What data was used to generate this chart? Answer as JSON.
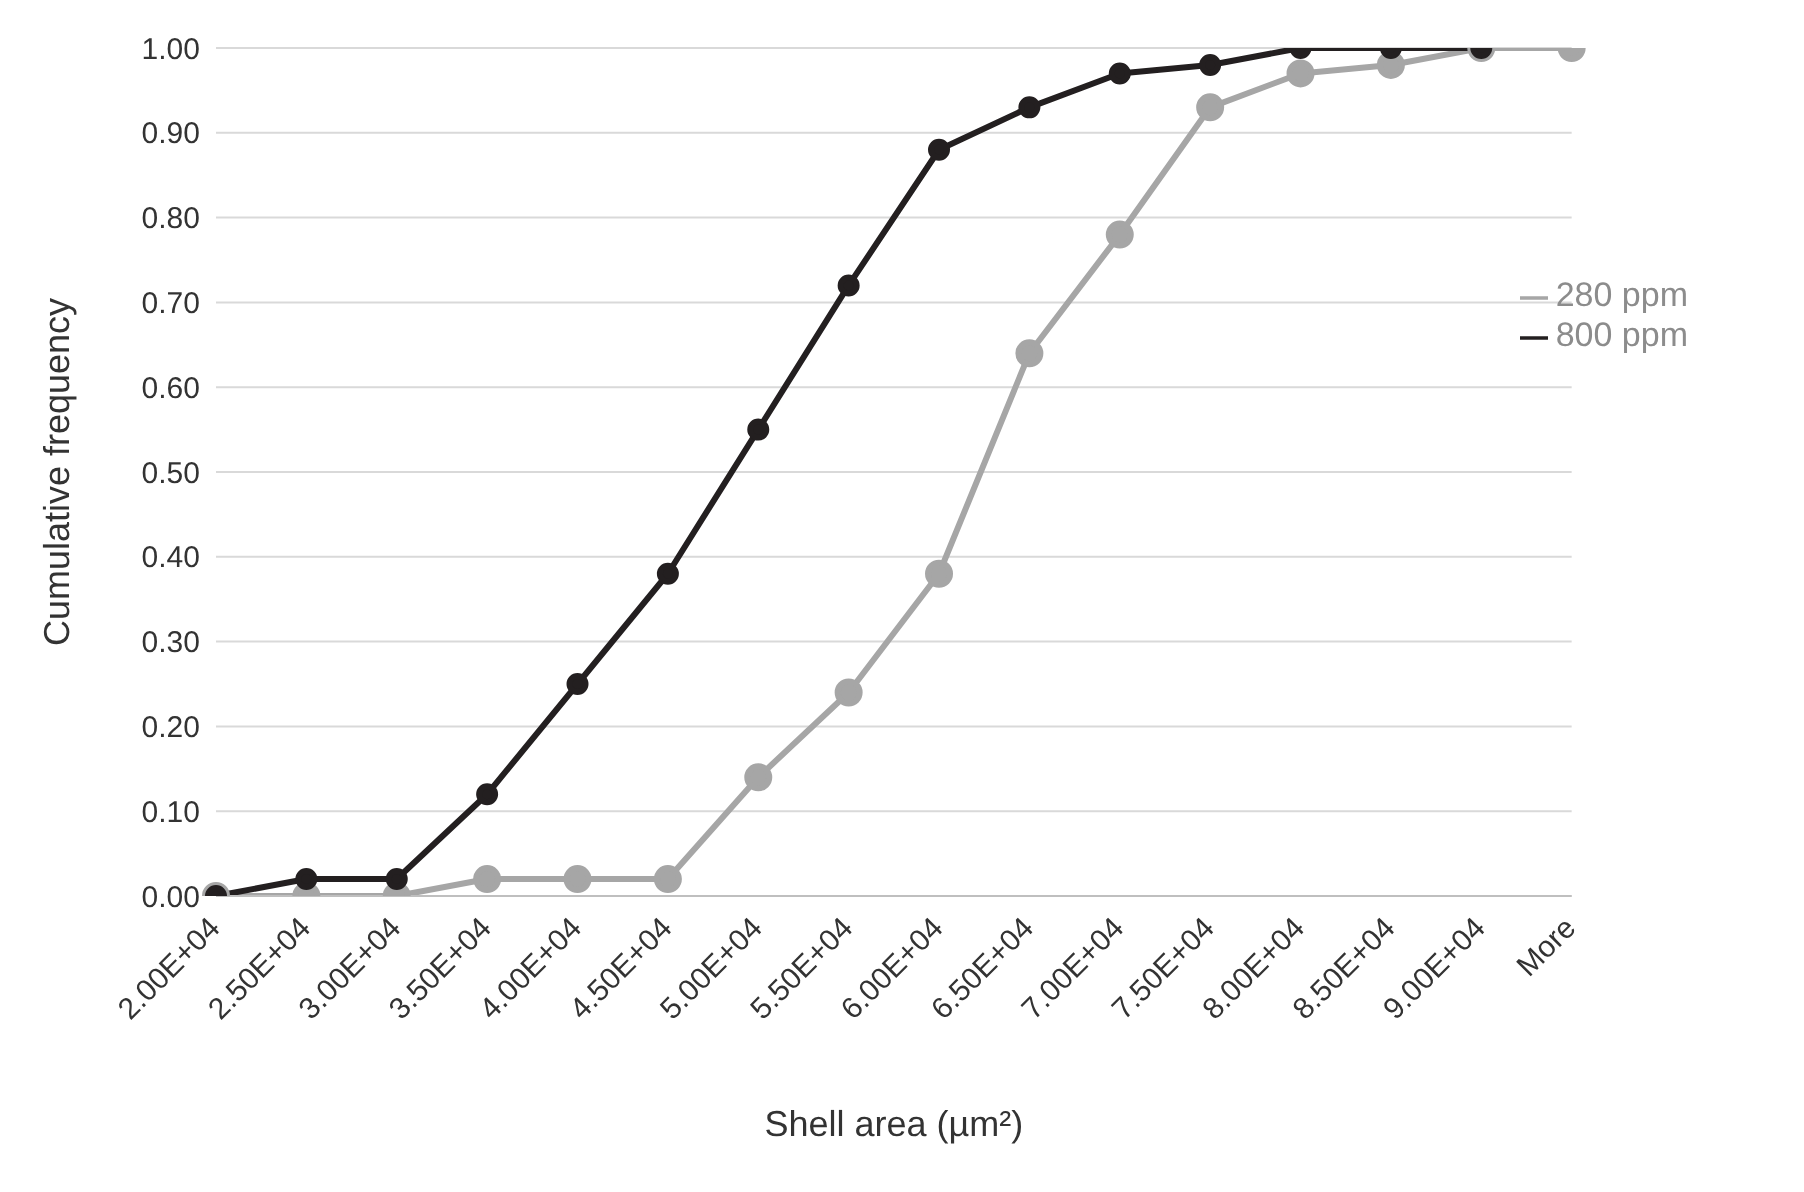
{
  "chart_data": {
    "type": "line",
    "xlabel": "Shell area (µm²)",
    "ylabel": "Cumulative frequency",
    "categories": [
      "2.00E+04",
      "2.50E+04",
      "3.00E+04",
      "3.50E+04",
      "4.00E+04",
      "4.50E+04",
      "5.00E+04",
      "5.50E+04",
      "6.00E+04",
      "6.50E+04",
      "7.00E+04",
      "7.50E+04",
      "8.00E+04",
      "8.50E+04",
      "9.00E+04",
      "More"
    ],
    "series": [
      {
        "name": "280 ppm",
        "color": "#a6a6a6",
        "values": [
          0,
          0,
          0,
          0.02,
          0.02,
          0.02,
          0.14,
          0.24,
          0.38,
          0.64,
          0.78,
          0.93,
          0.97,
          0.98,
          1.0,
          1.0
        ]
      },
      {
        "name": "800 ppm",
        "color": "#231f20",
        "values": [
          0,
          0.02,
          0.02,
          0.12,
          0.25,
          0.38,
          0.55,
          0.72,
          0.88,
          0.93,
          0.97,
          0.98,
          1.0,
          1.0,
          1.0,
          null
        ]
      }
    ],
    "ylim": [
      0,
      1
    ],
    "yticks": [
      {
        "value": 0,
        "label": "0.00"
      },
      {
        "value": 0.1,
        "label": "0.10"
      },
      {
        "value": 0.2,
        "label": "0.20"
      },
      {
        "value": 0.3,
        "label": "0.30"
      },
      {
        "value": 0.4,
        "label": "0.40"
      },
      {
        "value": 0.5,
        "label": "0.50"
      },
      {
        "value": 0.6,
        "label": "0.60"
      },
      {
        "value": 0.7,
        "label": "0.70"
      },
      {
        "value": 0.8,
        "label": "0.80"
      },
      {
        "value": 0.9,
        "label": "0.90"
      },
      {
        "value": 1,
        "label": "1.00"
      }
    ],
    "grid": "y",
    "legend": "right",
    "marker": "circle",
    "line_style": "solid"
  }
}
